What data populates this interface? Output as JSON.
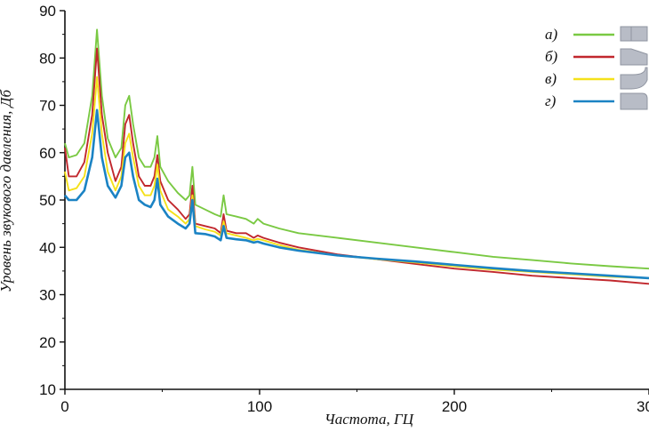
{
  "chart_data": {
    "type": "line",
    "xlabel": "Частота, ГЦ",
    "ylabel": "Уровень звукового давления, Дб",
    "xlim": [
      0,
      300
    ],
    "ylim": [
      10,
      90
    ],
    "x_ticks": [
      "0",
      "100",
      "200",
      "300"
    ],
    "y_ticks": [
      "10",
      "20",
      "30",
      "40",
      "50",
      "60",
      "70",
      "80",
      "90"
    ],
    "grid": false,
    "legend_position": "top-right",
    "series": [
      {
        "name": "а)",
        "color": "#7ac943",
        "points": [
          [
            0,
            62
          ],
          [
            2,
            59
          ],
          [
            6,
            59.5
          ],
          [
            10,
            62
          ],
          [
            14,
            72
          ],
          [
            16.5,
            86
          ],
          [
            19,
            72
          ],
          [
            22,
            63
          ],
          [
            26,
            59
          ],
          [
            29,
            61
          ],
          [
            31,
            70
          ],
          [
            33,
            72
          ],
          [
            35,
            66
          ],
          [
            38,
            59
          ],
          [
            41,
            57
          ],
          [
            44,
            57
          ],
          [
            46,
            59
          ],
          [
            47.5,
            63.5
          ],
          [
            49,
            57
          ],
          [
            53,
            54
          ],
          [
            58,
            51.5
          ],
          [
            62,
            50
          ],
          [
            64,
            51
          ],
          [
            65.5,
            57
          ],
          [
            67,
            49
          ],
          [
            72,
            48
          ],
          [
            77,
            47
          ],
          [
            80,
            46.5
          ],
          [
            81.5,
            51
          ],
          [
            83,
            47
          ],
          [
            88,
            46.5
          ],
          [
            93,
            46
          ],
          [
            97,
            45
          ],
          [
            99,
            46
          ],
          [
            102,
            45
          ],
          [
            110,
            44
          ],
          [
            120,
            43
          ],
          [
            140,
            42
          ],
          [
            160,
            41
          ],
          [
            180,
            40
          ],
          [
            200,
            39
          ],
          [
            220,
            38
          ],
          [
            240,
            37.3
          ],
          [
            260,
            36.6
          ],
          [
            280,
            36
          ],
          [
            300,
            35.5
          ]
        ]
      },
      {
        "name": "б)",
        "color": "#c1272d",
        "points": [
          [
            0,
            61
          ],
          [
            2,
            55
          ],
          [
            6,
            55
          ],
          [
            10,
            58
          ],
          [
            14,
            68
          ],
          [
            16.5,
            82
          ],
          [
            19,
            68
          ],
          [
            22,
            60
          ],
          [
            26,
            54
          ],
          [
            29,
            57
          ],
          [
            31,
            66
          ],
          [
            33,
            68
          ],
          [
            35,
            62
          ],
          [
            38,
            55
          ],
          [
            41,
            53
          ],
          [
            44,
            53
          ],
          [
            46,
            55
          ],
          [
            47.5,
            59.5
          ],
          [
            49,
            54
          ],
          [
            53,
            50
          ],
          [
            58,
            48
          ],
          [
            62,
            46
          ],
          [
            64,
            47
          ],
          [
            65.5,
            53
          ],
          [
            67,
            45
          ],
          [
            72,
            44.5
          ],
          [
            77,
            44
          ],
          [
            80,
            43
          ],
          [
            81.5,
            47
          ],
          [
            83,
            43.5
          ],
          [
            88,
            43
          ],
          [
            93,
            43
          ],
          [
            97,
            42
          ],
          [
            99,
            42.5
          ],
          [
            102,
            42
          ],
          [
            110,
            41
          ],
          [
            120,
            40
          ],
          [
            140,
            38.5
          ],
          [
            160,
            37.5
          ],
          [
            180,
            36.5
          ],
          [
            200,
            35.5
          ],
          [
            220,
            34.8
          ],
          [
            240,
            34
          ],
          [
            260,
            33.5
          ],
          [
            280,
            33
          ],
          [
            300,
            32.3
          ]
        ]
      },
      {
        "name": "в)",
        "color": "#f5e11a",
        "points": [
          [
            0,
            56
          ],
          [
            2,
            52
          ],
          [
            6,
            52.5
          ],
          [
            10,
            55
          ],
          [
            14,
            64
          ],
          [
            16.5,
            76
          ],
          [
            19,
            64
          ],
          [
            22,
            56
          ],
          [
            26,
            52
          ],
          [
            29,
            55
          ],
          [
            31,
            62
          ],
          [
            33,
            64
          ],
          [
            35,
            59
          ],
          [
            38,
            53
          ],
          [
            41,
            51
          ],
          [
            44,
            51
          ],
          [
            46,
            53
          ],
          [
            47.5,
            57.5
          ],
          [
            49,
            52
          ],
          [
            53,
            48
          ],
          [
            58,
            46.5
          ],
          [
            62,
            45
          ],
          [
            64,
            46
          ],
          [
            65.5,
            51
          ],
          [
            67,
            44.5
          ],
          [
            72,
            43.8
          ],
          [
            77,
            43.3
          ],
          [
            80,
            42.5
          ],
          [
            81.5,
            45.5
          ],
          [
            83,
            43
          ],
          [
            88,
            42.5
          ],
          [
            93,
            42
          ],
          [
            97,
            41.5
          ],
          [
            99,
            41.8
          ],
          [
            102,
            41.5
          ],
          [
            110,
            40.5
          ],
          [
            120,
            39.5
          ],
          [
            140,
            38.3
          ],
          [
            160,
            37.5
          ],
          [
            180,
            36.8
          ],
          [
            200,
            36
          ],
          [
            220,
            35.3
          ],
          [
            240,
            34.8
          ],
          [
            260,
            34.3
          ],
          [
            280,
            33.8
          ],
          [
            300,
            33.5
          ]
        ]
      },
      {
        "name": "г)",
        "color": "#1b83c4",
        "points": [
          [
            0,
            51
          ],
          [
            2,
            50
          ],
          [
            6,
            50
          ],
          [
            10,
            52
          ],
          [
            14,
            59
          ],
          [
            16.5,
            69
          ],
          [
            19,
            59
          ],
          [
            22,
            53
          ],
          [
            26,
            50.5
          ],
          [
            29,
            53
          ],
          [
            31,
            59
          ],
          [
            33,
            60
          ],
          [
            35,
            55
          ],
          [
            38,
            50
          ],
          [
            41,
            49
          ],
          [
            44,
            48.5
          ],
          [
            46,
            50
          ],
          [
            47.5,
            54.5
          ],
          [
            49,
            49
          ],
          [
            53,
            46.5
          ],
          [
            58,
            45
          ],
          [
            62,
            44
          ],
          [
            64,
            45
          ],
          [
            65.5,
            50
          ],
          [
            67,
            43
          ],
          [
            72,
            42.8
          ],
          [
            77,
            42.3
          ],
          [
            80,
            41.5
          ],
          [
            81.5,
            44.5
          ],
          [
            83,
            42
          ],
          [
            88,
            41.7
          ],
          [
            93,
            41.5
          ],
          [
            97,
            41
          ],
          [
            99,
            41.2
          ],
          [
            102,
            40.8
          ],
          [
            110,
            40
          ],
          [
            120,
            39.3
          ],
          [
            140,
            38.3
          ],
          [
            160,
            37.6
          ],
          [
            180,
            37
          ],
          [
            200,
            36.3
          ],
          [
            220,
            35.6
          ],
          [
            240,
            35
          ],
          [
            260,
            34.5
          ],
          [
            280,
            34
          ],
          [
            300,
            33.5
          ]
        ]
      }
    ]
  }
}
